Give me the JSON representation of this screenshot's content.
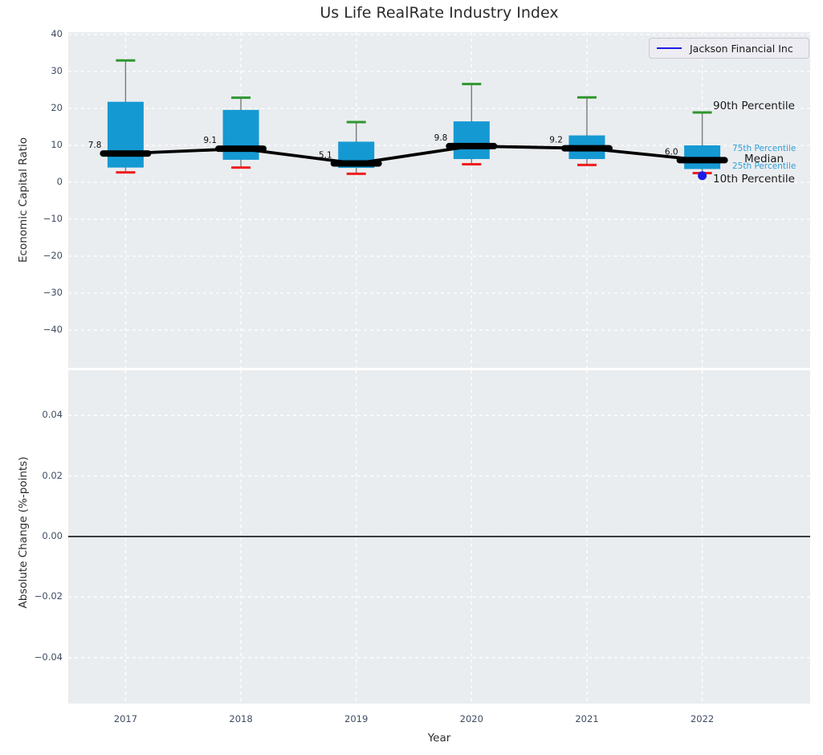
{
  "title": "Us Life RealRate Industry Index",
  "legend": {
    "label": "Jackson Financial Inc"
  },
  "annotations": {
    "p90": "90th Percentile",
    "p75": "75th Percentile",
    "median": "Median",
    "p25": "25th Percentile",
    "p10": "10th Percentile"
  },
  "colors": {
    "panel_bg": "#eaedf0",
    "grid": "#ffffff",
    "box_fill": "#1599d3",
    "whisker_line": "#7a7a7a",
    "cap_high": "#2f962f",
    "cap_low": "#ee1d1d",
    "median_line": "#000000",
    "company_blue": "#1c1ce6",
    "zero_line": "#000000",
    "tick_text": "#3f4c61",
    "percentile_blue": "#2da0d8",
    "label_text": "#1a1a1a"
  },
  "chart_data": {
    "type": "boxplot+line",
    "title": "Us Life RealRate Industry Index",
    "xlabel": "Year",
    "categories": [
      "2017",
      "2018",
      "2019",
      "2020",
      "2021",
      "2022"
    ],
    "panels": [
      {
        "ylabel": "Economic Capital Ratio",
        "ylim": [
          -50,
          40.7
        ],
        "tick_values": [
          40,
          30,
          20,
          10,
          0,
          -10,
          -20,
          -30,
          -40
        ],
        "tick_labels": [
          "40",
          "30",
          "20",
          "10",
          "0",
          "−10",
          "−20",
          "−30",
          "−40"
        ],
        "grid": true
      },
      {
        "ylabel": "Absolute Change (%-points)",
        "ylim": [
          -0.055,
          0.0545
        ],
        "tick_values": [
          0.04,
          0.02,
          0,
          -0.02,
          -0.04
        ],
        "tick_labels": [
          "0.04",
          "0.02",
          "0.00",
          "−0.02",
          "−0.04"
        ],
        "grid": true,
        "zero_line": 0
      }
    ],
    "boxes": [
      {
        "category": "2017",
        "p10": 2.7,
        "p25": 4.0,
        "median": 7.8,
        "p75": 21.8,
        "p90": 33.0,
        "median_label": "7.8"
      },
      {
        "category": "2018",
        "p10": 4.0,
        "p25": 6.1,
        "median": 9.1,
        "p75": 19.6,
        "p90": 22.9,
        "median_label": "9.1"
      },
      {
        "category": "2019",
        "p10": 2.3,
        "p25": 3.9,
        "median": 5.1,
        "p75": 11.0,
        "p90": 16.3,
        "median_label": "5.1"
      },
      {
        "category": "2020",
        "p10": 4.9,
        "p25": 6.3,
        "median": 9.8,
        "p75": 16.5,
        "p90": 26.6,
        "median_label": "9.8"
      },
      {
        "category": "2021",
        "p10": 4.7,
        "p25": 6.3,
        "median": 9.2,
        "p75": 12.7,
        "p90": 23.0,
        "median_label": "9.2"
      },
      {
        "category": "2022",
        "p10": 2.5,
        "p25": 3.6,
        "median": 6.0,
        "p75": 10.0,
        "p90": 18.9,
        "median_label": "6.0"
      }
    ],
    "company_series": {
      "name": "Jackson Financial Inc",
      "points": [
        {
          "category": "2022",
          "value": 1.8
        }
      ]
    }
  }
}
